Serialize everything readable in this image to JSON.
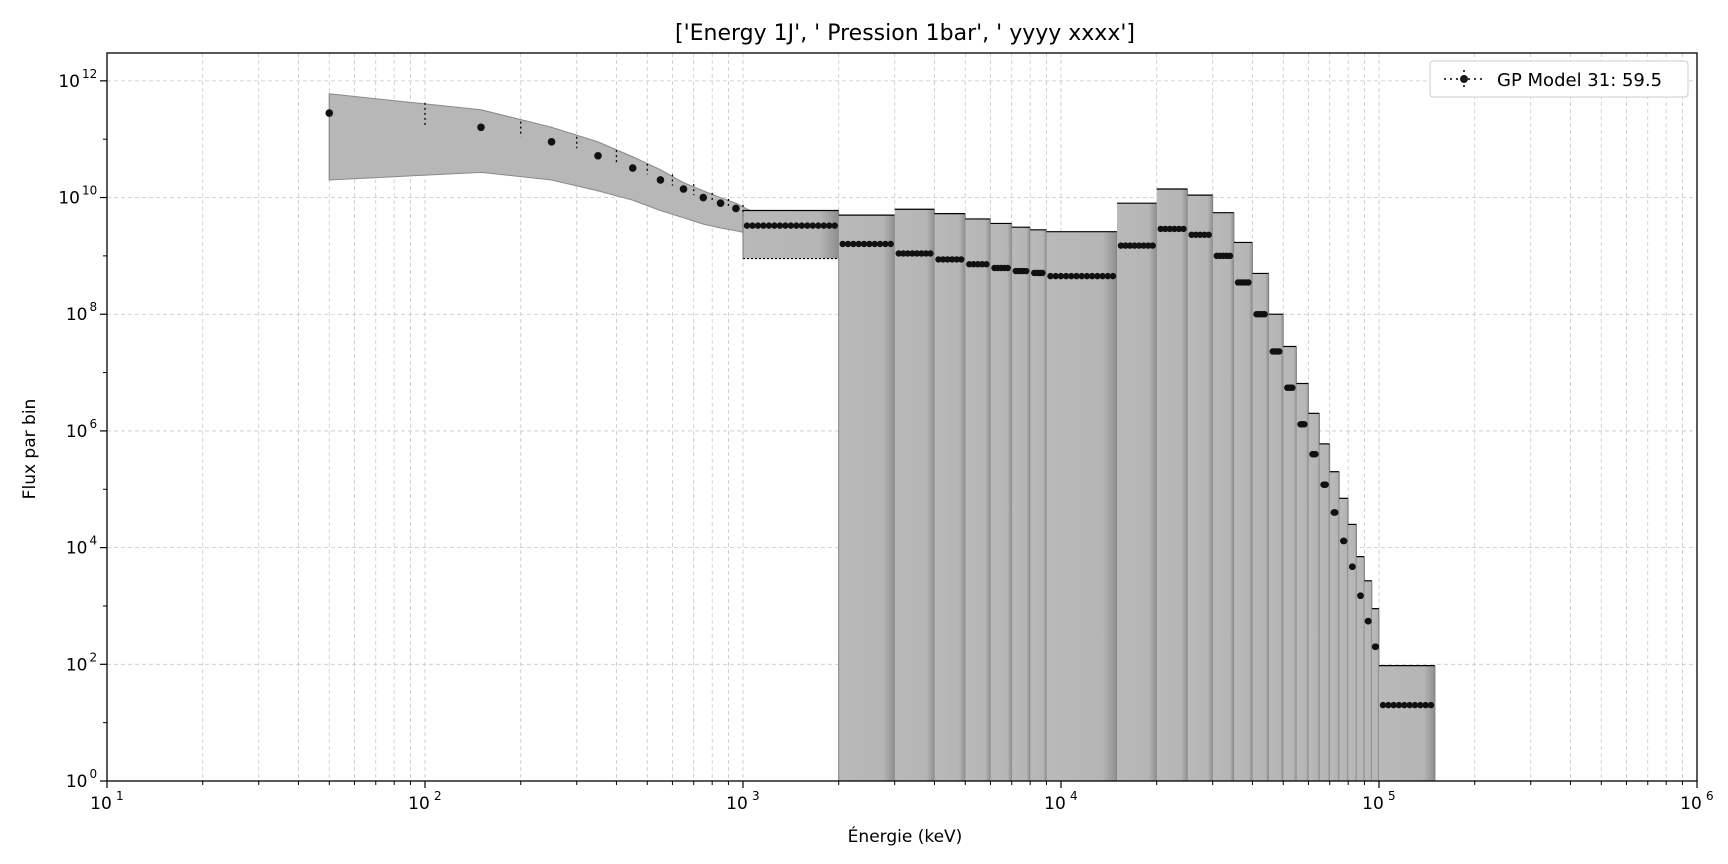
{
  "chart_data": {
    "type": "scatter",
    "title": "['Energy 1J', ' Pression 1bar', ' yyyy xxxx']",
    "xlabel": "Énergie (keV)",
    "ylabel": "Flux par bin",
    "xscale": "log",
    "yscale": "log",
    "xlim": [
      10,
      1000000
    ],
    "ylim": [
      1,
      3000000000000
    ],
    "x_ticks": [
      10,
      100,
      1000,
      10000,
      100000,
      1000000
    ],
    "x_tick_labels": [
      {
        "base": "10",
        "exp": "1"
      },
      {
        "base": "10",
        "exp": "2"
      },
      {
        "base": "10",
        "exp": "3"
      },
      {
        "base": "10",
        "exp": "4"
      },
      {
        "base": "10",
        "exp": "5"
      },
      {
        "base": "10",
        "exp": "6"
      }
    ],
    "y_ticks": [
      1,
      100,
      10000,
      1000000,
      100000000,
      10000000000,
      1000000000000
    ],
    "y_tick_labels": [
      {
        "base": "10",
        "exp": "0"
      },
      {
        "base": "10",
        "exp": "2"
      },
      {
        "base": "10",
        "exp": "4"
      },
      {
        "base": "10",
        "exp": "6"
      },
      {
        "base": "10",
        "exp": "8"
      },
      {
        "base": "10",
        "exp": "10"
      },
      {
        "base": "10",
        "exp": "12"
      }
    ],
    "grid": true,
    "legend": {
      "position": "upper-right",
      "label": "GP Model 31: 59.5"
    },
    "band": {
      "description_color": "#b0b0b0",
      "x": [
        50,
        150,
        250,
        350,
        450,
        550,
        650,
        750,
        850,
        950,
        1050
      ],
      "upper": [
        600000000000,
        320000000000,
        160000000000,
        90000000000,
        50000000000,
        30000000000,
        18000000000,
        13000000000,
        10000000000,
        8000000000,
        6000000000
      ],
      "lower": [
        20000000000,
        27000000000,
        20000000000,
        13000000000,
        9000000000,
        6000000000,
        4500000000,
        3500000000,
        3000000000,
        2700000000,
        2400000000
      ]
    },
    "bins": [
      {
        "x0": 1000,
        "x1": 2000,
        "upper": 6000000000,
        "lower": 900000000,
        "value": 3300000000,
        "filled_to_axis": false
      },
      {
        "x0": 2000,
        "x1": 3000,
        "upper": 5000000000,
        "lower": 1,
        "value": 1600000000,
        "filled_to_axis": true
      },
      {
        "x0": 3000,
        "x1": 4000,
        "upper": 6300000000,
        "lower": 1,
        "value": 1100000000,
        "filled_to_axis": true
      },
      {
        "x0": 4000,
        "x1": 5000,
        "upper": 5300000000,
        "lower": 1,
        "value": 870000000,
        "filled_to_axis": true
      },
      {
        "x0": 5000,
        "x1": 6000,
        "upper": 4300000000,
        "lower": 1,
        "value": 720000000,
        "filled_to_axis": true
      },
      {
        "x0": 6000,
        "x1": 7000,
        "upper": 3600000000,
        "lower": 1,
        "value": 620000000,
        "filled_to_axis": true
      },
      {
        "x0": 7000,
        "x1": 8000,
        "upper": 3100000000,
        "lower": 1,
        "value": 550000000,
        "filled_to_axis": true
      },
      {
        "x0": 8000,
        "x1": 9000,
        "upper": 2800000000,
        "lower": 1,
        "value": 510000000,
        "filled_to_axis": true
      },
      {
        "x0": 9000,
        "x1": 15000,
        "upper": 2600000000,
        "lower": 1,
        "value": 450000000,
        "filled_to_axis": true
      },
      {
        "x0": 15000,
        "x1": 20000,
        "upper": 8000000000,
        "lower": 1,
        "value": 1500000000,
        "filled_to_axis": true
      },
      {
        "x0": 20000,
        "x1": 25000,
        "upper": 14000000000,
        "lower": 1,
        "value": 2900000000,
        "filled_to_axis": true
      },
      {
        "x0": 25000,
        "x1": 30000,
        "upper": 11000000000,
        "lower": 1,
        "value": 2300000000,
        "filled_to_axis": true
      },
      {
        "x0": 30000,
        "x1": 35000,
        "upper": 5500000000,
        "lower": 1,
        "value": 1000000000,
        "filled_to_axis": true
      },
      {
        "x0": 35000,
        "x1": 40000,
        "upper": 1700000000,
        "lower": 1,
        "value": 350000000,
        "filled_to_axis": true
      },
      {
        "x0": 40000,
        "x1": 45000,
        "upper": 500000000,
        "lower": 1,
        "value": 100000000,
        "filled_to_axis": true
      },
      {
        "x0": 45000,
        "x1": 50000,
        "upper": 100000000,
        "lower": 1,
        "value": 23000000,
        "filled_to_axis": true
      },
      {
        "x0": 50000,
        "x1": 55000,
        "upper": 28000000,
        "lower": 1,
        "value": 5500000,
        "filled_to_axis": true
      },
      {
        "x0": 55000,
        "x1": 60000,
        "upper": 6500000,
        "lower": 1,
        "value": 1300000,
        "filled_to_axis": true
      },
      {
        "x0": 60000,
        "x1": 65000,
        "upper": 2000000,
        "lower": 1,
        "value": 400000,
        "filled_to_axis": true
      },
      {
        "x0": 65000,
        "x1": 70000,
        "upper": 600000,
        "lower": 1,
        "value": 120000,
        "filled_to_axis": true
      },
      {
        "x0": 70000,
        "x1": 75000,
        "upper": 200000,
        "lower": 1,
        "value": 40000,
        "filled_to_axis": true
      },
      {
        "x0": 75000,
        "x1": 80000,
        "upper": 70000,
        "lower": 1,
        "value": 13000,
        "filled_to_axis": true
      },
      {
        "x0": 80000,
        "x1": 85000,
        "upper": 25000,
        "lower": 1,
        "value": 4700,
        "filled_to_axis": true
      },
      {
        "x0": 85000,
        "x1": 90000,
        "upper": 7000,
        "lower": 1,
        "value": 1500,
        "filled_to_axis": true
      },
      {
        "x0": 90000,
        "x1": 95000,
        "upper": 2700,
        "lower": 1,
        "value": 550,
        "filled_to_axis": true
      },
      {
        "x0": 95000,
        "x1": 100000,
        "upper": 900,
        "lower": 1,
        "value": 200,
        "filled_to_axis": true
      },
      {
        "x0": 100000,
        "x1": 150000,
        "upper": 95,
        "lower": 1,
        "value": 20,
        "filled_to_axis": true
      }
    ],
    "points_low": [
      {
        "x": 50,
        "y": 280000000000
      },
      {
        "x": 150,
        "y": 160000000000
      },
      {
        "x": 250,
        "y": 90000000000
      },
      {
        "x": 350,
        "y": 52000000000
      },
      {
        "x": 450,
        "y": 32000000000
      },
      {
        "x": 550,
        "y": 20000000000
      },
      {
        "x": 650,
        "y": 14000000000
      },
      {
        "x": 750,
        "y": 10000000000
      },
      {
        "x": 850,
        "y": 8000000000
      },
      {
        "x": 950,
        "y": 6500000000
      }
    ],
    "errorbars_low": [
      {
        "x": 100,
        "ylo": 160000000000,
        "yhi": 420000000000
      },
      {
        "x": 200,
        "ylo": 110000000000,
        "yhi": 200000000000
      },
      {
        "x": 300,
        "ylo": 70000000000,
        "yhi": 110000000000
      },
      {
        "x": 400,
        "ylo": 40000000000,
        "yhi": 65000000000
      },
      {
        "x": 500,
        "ylo": 25000000000,
        "yhi": 38000000000
      },
      {
        "x": 600,
        "ylo": 16000000000,
        "yhi": 25000000000
      },
      {
        "x": 700,
        "ylo": 11000000000,
        "yhi": 17000000000
      },
      {
        "x": 800,
        "ylo": 8500000000,
        "yhi": 12000000000
      },
      {
        "x": 900,
        "ylo": 6500000000,
        "yhi": 9500000000
      },
      {
        "x": 1000,
        "ylo": 5000000000,
        "yhi": 7500000000
      }
    ]
  }
}
